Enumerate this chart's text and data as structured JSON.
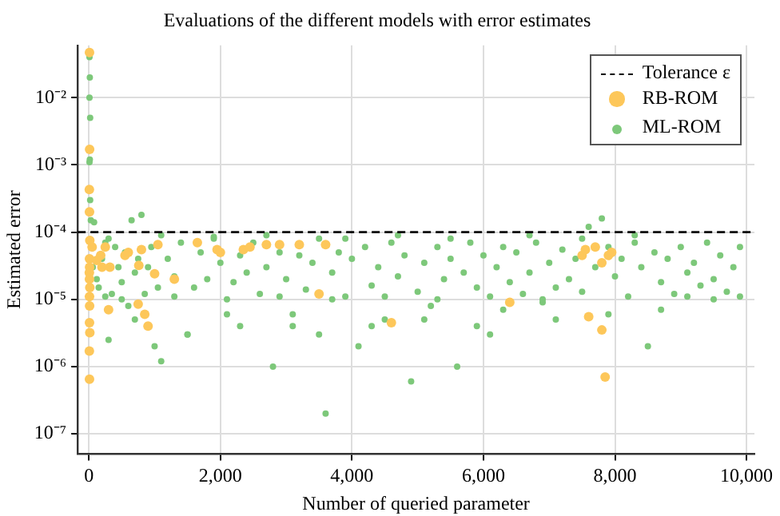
{
  "chart_data": {
    "type": "scatter",
    "title": "Evaluations of the different models with error estimates",
    "xlabel": "Number of queried parameter",
    "ylabel": "Estimated error",
    "log": "y",
    "grid": true,
    "legend": "top right",
    "marker": "circle",
    "xlim": [
      -170,
      10120
    ],
    "xticks": [
      0,
      {
        "value": 2000,
        "label": "2,000"
      },
      {
        "value": 4000,
        "label": "4,000"
      },
      {
        "value": 6000,
        "label": "6,000"
      },
      {
        "value": 8000,
        "label": "8,000"
      },
      {
        "value": 10000,
        "label": "10,000"
      }
    ],
    "ylim": [
      5e-08,
      0.06
    ],
    "yticks": [
      {
        "value": 1e-07,
        "label": "10⁻⁷"
      },
      {
        "value": 1e-06,
        "label": "10⁻⁶"
      },
      {
        "value": 1e-05,
        "label": "10⁻⁵"
      },
      {
        "value": 0.0001,
        "label": "10⁻⁴"
      },
      {
        "value": 0.001,
        "label": "10⁻³"
      },
      {
        "value": 0.01,
        "label": "10⁻²"
      }
    ],
    "ref_lines": [
      {
        "axis": "y",
        "value": 0.0001,
        "label": "Tolerance ε",
        "color": "#000000",
        "line_style": "dashed"
      }
    ],
    "series": [
      {
        "name": "ML-ROM",
        "color": "#7dc87a",
        "x": [
          10,
          15,
          10,
          20,
          15,
          10,
          20,
          30,
          250,
          60,
          80,
          120,
          150,
          200,
          250,
          300,
          350,
          400,
          450,
          500,
          550,
          600,
          650,
          700,
          750,
          800,
          850,
          900,
          950,
          1000,
          1050,
          1100,
          1200,
          1300,
          1400,
          1500,
          1600,
          1700,
          1800,
          1900,
          2000,
          2100,
          2200,
          2300,
          2400,
          2500,
          2600,
          2700,
          2800,
          2900,
          3000,
          3100,
          3200,
          3300,
          3400,
          3500,
          3600,
          3700,
          3800,
          3900,
          4000,
          4100,
          4200,
          4300,
          4400,
          4500,
          4600,
          4700,
          4800,
          4900,
          5000,
          5100,
          5200,
          5300,
          5400,
          5500,
          5600,
          5700,
          5800,
          5900,
          6000,
          6100,
          6200,
          6300,
          6400,
          6500,
          6600,
          6700,
          6800,
          6900,
          7000,
          7100,
          7200,
          7300,
          7400,
          7500,
          7600,
          7700,
          7800,
          7900,
          8000,
          8100,
          8200,
          8300,
          8400,
          8500,
          8600,
          8700,
          8800,
          8900,
          9000,
          9100,
          9200,
          9300,
          9400,
          9500,
          9600,
          9700,
          9800,
          9900,
          300,
          700,
          1100,
          1500,
          1900,
          2300,
          2700,
          3100,
          3500,
          3900,
          4300,
          4700,
          5100,
          5500,
          5900,
          6300,
          6700,
          7100,
          7500,
          7900,
          8300,
          8700,
          9100,
          9500,
          9900,
          500,
          1300,
          2100,
          2900,
          3700,
          4500,
          5300,
          6100,
          6900
        ],
        "values": [
          0.04,
          0.02,
          0.01,
          0.005,
          0.0012,
          0.0011,
          0.0003,
          0.00015,
          1.1e-05,
          3e-05,
          0.00014,
          2e-05,
          1.5e-05,
          4e-05,
          7e-05,
          2.5e-06,
          1.2e-05,
          6e-05,
          3e-05,
          1.8e-05,
          5e-05,
          8e-06,
          0.00015,
          2.5e-05,
          4e-05,
          0.00018,
          1.2e-05,
          3e-05,
          6e-05,
          2e-06,
          1.5e-05,
          1.2e-06,
          4e-05,
          2.2e-05,
          7e-05,
          3e-06,
          1.5e-05,
          5e-05,
          2e-05,
          8e-05,
          3.5e-05,
          6e-06,
          1.8e-05,
          4.5e-05,
          2.5e-05,
          7e-05,
          1.2e-05,
          3e-05,
          1e-06,
          5e-05,
          2e-05,
          4e-06,
          4.5e-05,
          1.4e-05,
          3.5e-05,
          8e-05,
          2e-07,
          2.5e-05,
          5e-05,
          1.1e-05,
          4e-05,
          2e-06,
          6e-05,
          1.6e-05,
          3e-05,
          5e-06,
          7e-05,
          2.2e-05,
          4.5e-05,
          6e-07,
          1.3e-05,
          3.5e-05,
          8e-06,
          6e-05,
          2e-05,
          4e-05,
          1e-06,
          2.5e-05,
          7e-05,
          1.5e-05,
          4.5e-05,
          3e-06,
          3e-05,
          6e-05,
          1.8e-05,
          5e-05,
          1.2e-05,
          2.5e-05,
          7e-05,
          9e-06,
          3.5e-05,
          1.5e-05,
          5.5e-05,
          2e-05,
          4e-05,
          1.3e-05,
          0.00012,
          3e-05,
          0.00016,
          6e-05,
          2.2e-05,
          4e-05,
          1.1e-05,
          7e-05,
          3e-05,
          2e-06,
          5e-05,
          1.8e-05,
          4e-05,
          1.2e-05,
          6e-05,
          2.5e-05,
          3.5e-05,
          1.6e-05,
          7e-05,
          2e-05,
          4.5e-05,
          1.3e-05,
          3e-05,
          6e-05,
          8e-05,
          5e-06,
          9e-05,
          3e-06,
          8.5e-05,
          4e-06,
          9e-05,
          6e-06,
          3e-06,
          8e-05,
          4e-06,
          9e-05,
          5e-06,
          8e-05,
          4e-06,
          7e-06,
          9e-05,
          5e-06,
          8e-05,
          6e-06,
          9e-05,
          7e-06,
          1.1e-05,
          1e-05,
          1.1e-05,
          1e-05,
          1.1e-05,
          1e-05,
          1.1e-05,
          1e-05,
          1.1e-05,
          1e-05,
          1.1e-05,
          1e-05
        ]
      },
      {
        "name": "RB-ROM",
        "color": "#fdc75a",
        "x": [
          10,
          12,
          8,
          10,
          15,
          10,
          12,
          8,
          10,
          15,
          10,
          12,
          10,
          15,
          8,
          10,
          50,
          120,
          180,
          250,
          320,
          200,
          300,
          550,
          600,
          760,
          750,
          800,
          850,
          900,
          1050,
          1000,
          1300,
          1650,
          1950,
          2000,
          2350,
          2450,
          2700,
          2900,
          3200,
          3600,
          3500,
          4600,
          6400,
          7600,
          7850,
          7800,
          7500,
          7550,
          7700,
          7800,
          7900,
          7950
        ],
        "values": [
          0.047,
          0.0017,
          0.00043,
          0.0002,
          7.5e-05,
          4e-05,
          3e-05,
          2.5e-05,
          2e-05,
          1.5e-05,
          1.1e-05,
          8e-06,
          4.5e-06,
          3.2e-06,
          1.7e-06,
          6.5e-07,
          6e-05,
          3.8e-05,
          4.5e-05,
          6e-05,
          3e-05,
          3e-05,
          7e-06,
          4.5e-05,
          5e-05,
          3.2e-05,
          8.5e-06,
          5.5e-05,
          6e-06,
          4e-06,
          6.5e-05,
          2.4e-05,
          2e-05,
          7e-05,
          5.5e-05,
          5e-05,
          5.5e-05,
          6e-05,
          6.5e-05,
          6.5e-05,
          6.5e-05,
          6.5e-05,
          1.2e-05,
          4.5e-06,
          9e-06,
          5.5e-06,
          7e-07,
          3.5e-06,
          4.5e-05,
          5.5e-05,
          6e-05,
          3.5e-05,
          4.5e-05,
          5e-05
        ]
      }
    ]
  }
}
